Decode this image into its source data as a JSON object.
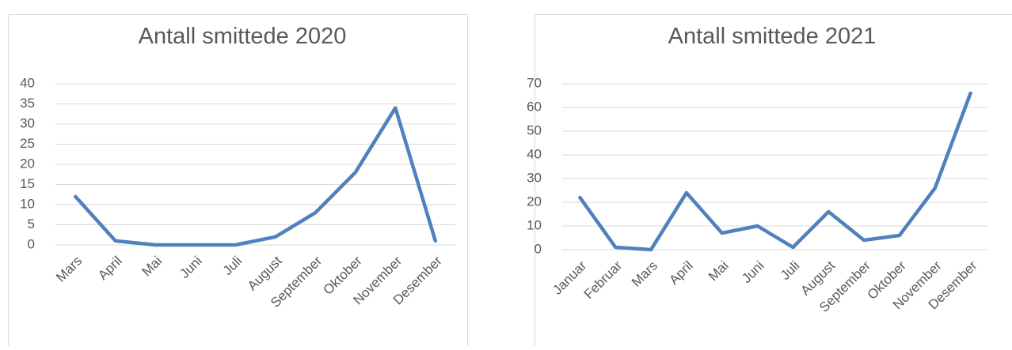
{
  "chart_data": [
    {
      "type": "line",
      "title": "Antall smittede 2020",
      "categories": [
        "Mars",
        "April",
        "Mai",
        "Juni",
        "Juli",
        "August",
        "September",
        "Oktober",
        "November",
        "Desember"
      ],
      "series": [
        {
          "name": "Antall smittede",
          "color": "#4f81bd",
          "values": [
            12,
            1,
            0,
            0,
            0,
            2,
            8,
            18,
            34,
            1
          ]
        }
      ],
      "ylim": [
        0,
        40
      ],
      "yticks": [
        0,
        5,
        10,
        15,
        20,
        25,
        30,
        35,
        40
      ],
      "grid": true
    },
    {
      "type": "line",
      "title": "Antall smittede 2021",
      "categories": [
        "Januar",
        "Februar",
        "Mars",
        "April",
        "Mai",
        "Juni",
        "Juli",
        "August",
        "September",
        "Oktober",
        "November",
        "Desember"
      ],
      "series": [
        {
          "name": "Antall smittede",
          "color": "#4f81bd",
          "values": [
            22,
            1,
            0,
            24,
            7,
            10,
            1,
            16,
            4,
            6,
            26,
            66
          ]
        }
      ],
      "ylim": [
        0,
        70
      ],
      "yticks": [
        0,
        10,
        20,
        30,
        40,
        50,
        60,
        70
      ],
      "grid": true
    }
  ]
}
